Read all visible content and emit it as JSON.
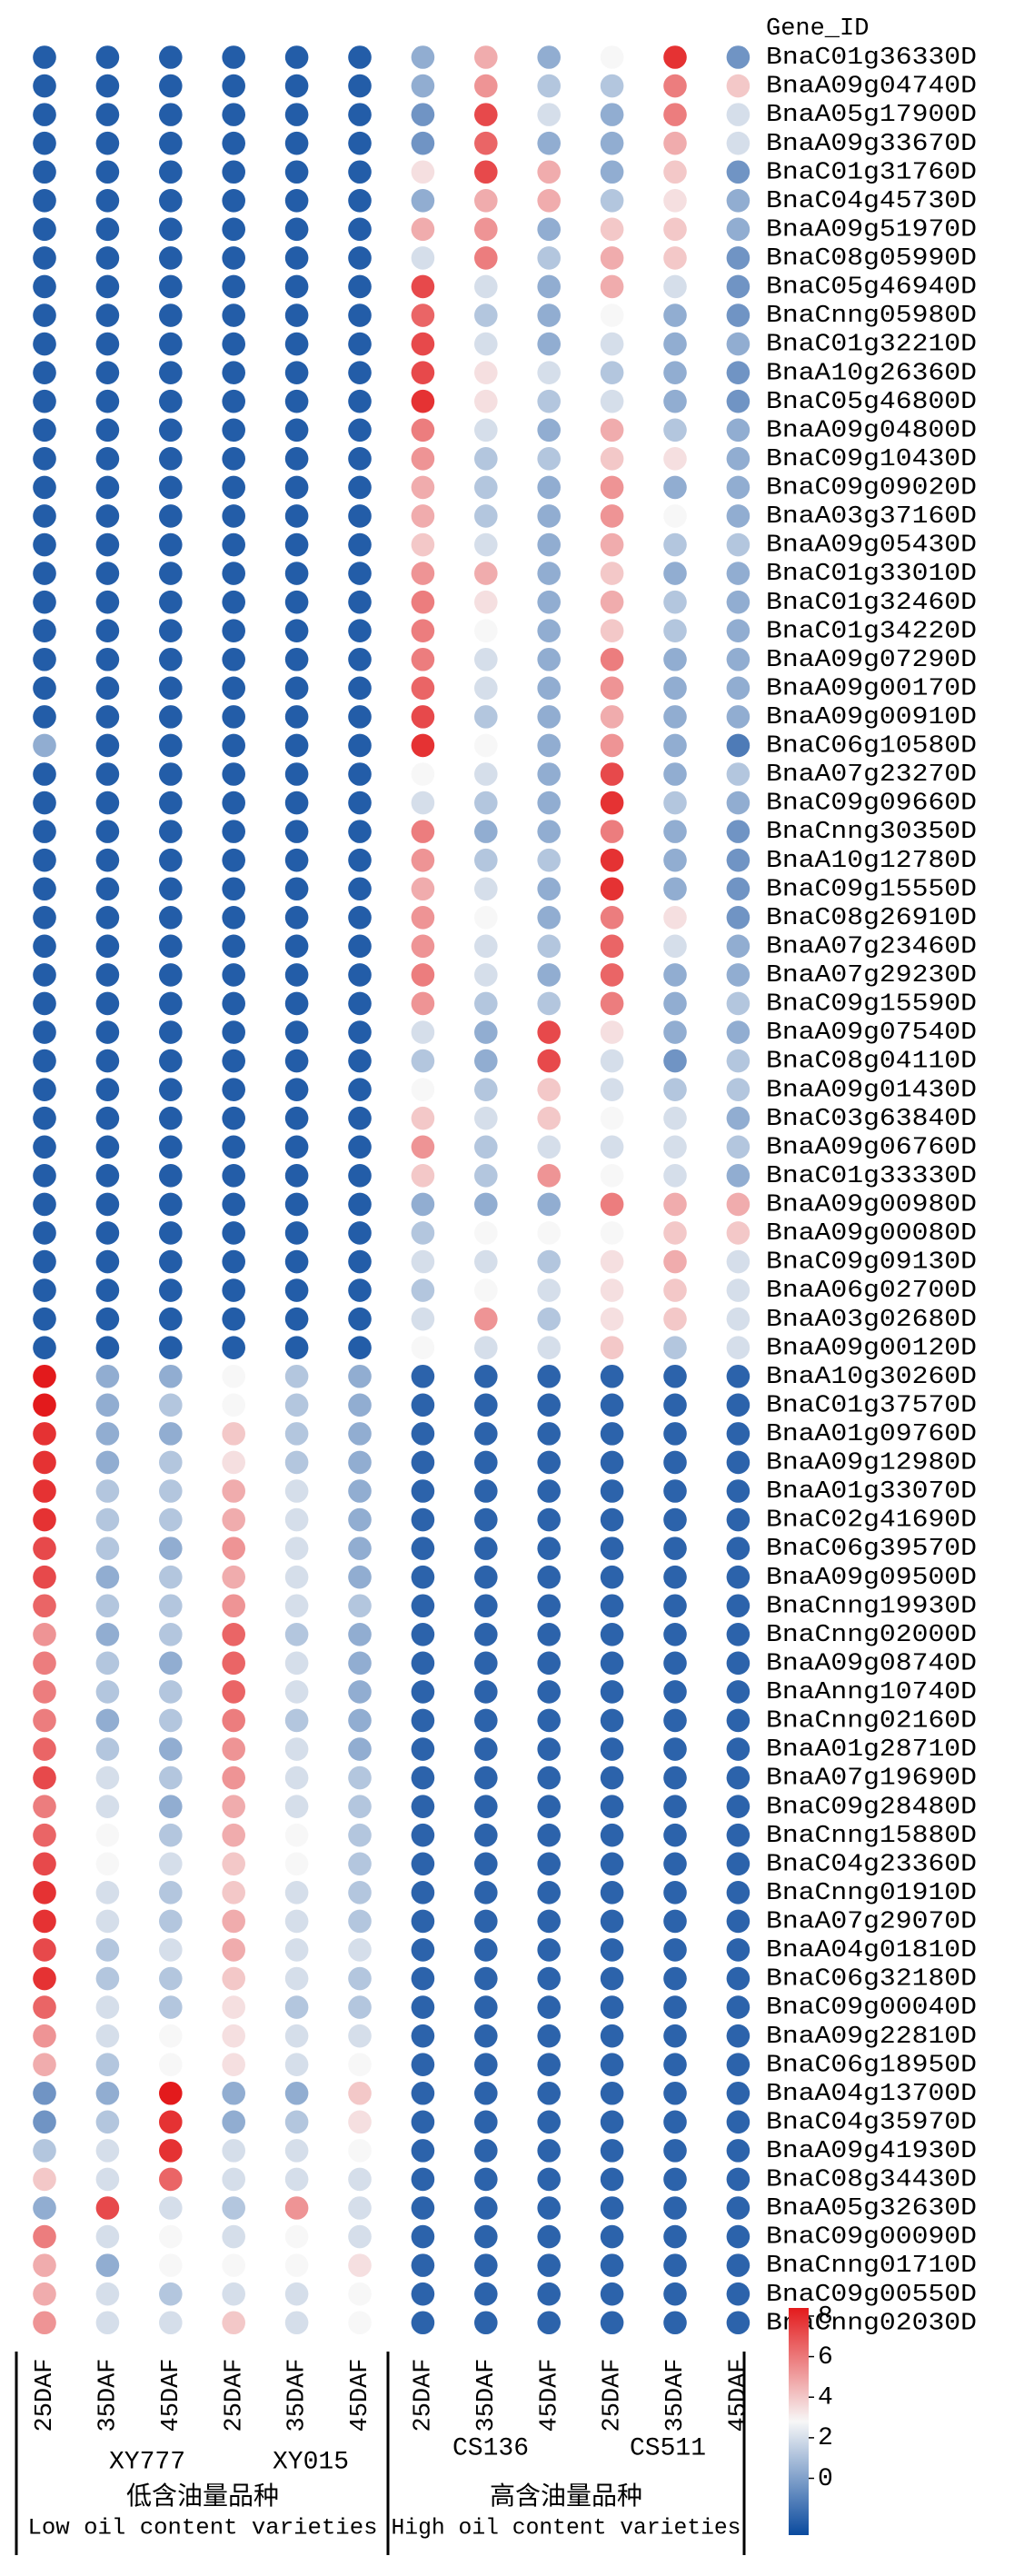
{
  "chart_data": {
    "type": "heatmap",
    "row_header": "Gene_ID",
    "rows": [
      "BnaC01g36330D",
      "BnaA09g04740D",
      "BnaA05g17900D",
      "BnaA09g33670D",
      "BnaC01g31760D",
      "BnaC04g45730D",
      "BnaA09g51970D",
      "BnaC08g05990D",
      "BnaC05g46940D",
      "BnaCnng05980D",
      "BnaC01g32210D",
      "BnaA10g26360D",
      "BnaC05g46800D",
      "BnaA09g04800D",
      "BnaC09g10430D",
      "BnaC09g09020D",
      "BnaA03g37160D",
      "BnaA09g05430D",
      "BnaC01g33010D",
      "BnaC01g32460D",
      "BnaC01g34220D",
      "BnaA09g07290D",
      "BnaA09g00170D",
      "BnaA09g00910D",
      "BnaC06g10580D",
      "BnaA07g23270D",
      "BnaC09g09660D",
      "BnaCnng30350D",
      "BnaA10g12780D",
      "BnaC09g15550D",
      "BnaC08g26910D",
      "BnaA07g23460D",
      "BnaA07g29230D",
      "BnaC09g15590D",
      "BnaA09g07540D",
      "BnaC08g04110D",
      "BnaA09g01430D",
      "BnaC03g63840D",
      "BnaA09g06760D",
      "BnaC01g33330D",
      "BnaA09g00980D",
      "BnaA09g00080D",
      "BnaC09g09130D",
      "BnaA06g02700D",
      "BnaA03g02680D",
      "BnaA09g00120D",
      "BnaA10g30260D",
      "BnaC01g37570D",
      "BnaA01g09760D",
      "BnaA09g12980D",
      "BnaA01g33070D",
      "BnaC02g41690D",
      "BnaC06g39570D",
      "BnaA09g09500D",
      "BnaCnng19930D",
      "BnaCnng02000D",
      "BnaA09g08740D",
      "BnaAnng10740D",
      "BnaCnng02160D",
      "BnaA01g28710D",
      "BnaA07g19690D",
      "BnaC09g28480D",
      "BnaCnng15880D",
      "BnaC04g23360D",
      "BnaCnng01910D",
      "BnaA07g29070D",
      "BnaA04g01810D",
      "BnaC06g32180D",
      "BnaC09g00040D",
      "BnaA09g22810D",
      "BnaC06g18950D",
      "BnaA04g13700D",
      "BnaC04g35970D",
      "BnaA09g41930D",
      "BnaC08g34430D",
      "BnaA05g32630D",
      "BnaC09g00090D",
      "BnaCnng01710D",
      "BnaC09g00550D",
      "BnaCnng02030D"
    ],
    "columns": [
      "25DAF",
      "35DAF",
      "45DAF",
      "25DAF",
      "35DAF",
      "45DAF",
      "25DAF",
      "35DAF",
      "45DAF",
      "25DAF",
      "35DAF",
      "45DAF"
    ],
    "group_labels": [
      "XY777",
      "XY015",
      "CS136",
      "CS511"
    ],
    "sections": [
      {
        "zh": "低含油量品种",
        "en": "Low oil content varieties"
      },
      {
        "zh": "高含油量品种",
        "en": "High oil content varieties"
      }
    ],
    "values": [
      [
        -2.2,
        -2.2,
        -2.2,
        -2.2,
        -2.2,
        -2.2,
        0.4,
        4.7,
        0.4,
        2.8,
        7.8,
        -0.4
      ],
      [
        -2.2,
        -2.2,
        -2.2,
        -2.2,
        -2.2,
        -2.2,
        0.4,
        5.3,
        1.2,
        1.2,
        5.9,
        4.0
      ],
      [
        -2.2,
        -2.2,
        -2.2,
        -2.2,
        -2.2,
        -2.2,
        -0.4,
        7.2,
        2.0,
        0.4,
        5.9,
        2.0
      ],
      [
        -2.2,
        -2.2,
        -2.2,
        -2.2,
        -2.2,
        -2.2,
        -0.4,
        6.5,
        0.4,
        0.4,
        4.7,
        2.0
      ],
      [
        -2.2,
        -2.2,
        -2.2,
        -2.2,
        -2.2,
        -2.2,
        3.4,
        7.2,
        4.7,
        0.4,
        4.0,
        -0.4
      ],
      [
        -2.2,
        -2.2,
        -2.2,
        -2.2,
        -2.2,
        -2.2,
        0.4,
        4.7,
        4.7,
        1.2,
        3.4,
        0.4
      ],
      [
        -2.2,
        -2.2,
        -2.2,
        -2.2,
        -2.2,
        -2.2,
        4.7,
        5.3,
        0.4,
        4.0,
        4.0,
        0.4
      ],
      [
        -2.2,
        -2.2,
        -2.2,
        -2.2,
        -2.2,
        -2.2,
        2.0,
        5.9,
        1.2,
        4.7,
        4.0,
        -0.4
      ],
      [
        -2.2,
        -2.2,
        -2.2,
        -2.2,
        -2.2,
        -2.2,
        7.2,
        2.0,
        0.4,
        4.7,
        2.0,
        -0.4
      ],
      [
        -2.2,
        -2.2,
        -2.2,
        -2.2,
        -2.2,
        -2.2,
        6.5,
        1.2,
        0.4,
        2.8,
        0.4,
        -0.4
      ],
      [
        -2.2,
        -2.2,
        -2.2,
        -2.2,
        -2.2,
        -2.2,
        7.2,
        2.0,
        0.4,
        2.0,
        0.4,
        0.4
      ],
      [
        -2.2,
        -2.2,
        -2.2,
        -2.2,
        -2.2,
        -2.2,
        7.2,
        3.4,
        2.0,
        1.2,
        0.4,
        -0.4
      ],
      [
        -2.2,
        -2.2,
        -2.2,
        -2.2,
        -2.2,
        -2.2,
        7.8,
        3.4,
        1.2,
        2.0,
        0.4,
        -0.4
      ],
      [
        -2.2,
        -2.2,
        -2.2,
        -2.2,
        -2.2,
        -2.2,
        5.9,
        2.0,
        0.4,
        4.7,
        1.2,
        0.4
      ],
      [
        -2.2,
        -2.2,
        -2.2,
        -2.2,
        -2.2,
        -2.2,
        5.3,
        1.2,
        1.2,
        4.0,
        3.4,
        0.4
      ],
      [
        -2.2,
        -2.2,
        -2.2,
        -2.2,
        -2.2,
        -2.2,
        4.7,
        1.2,
        0.4,
        5.3,
        0.4,
        0.4
      ],
      [
        -2.2,
        -2.2,
        -2.2,
        -2.2,
        -2.2,
        -2.2,
        4.7,
        1.2,
        0.4,
        5.3,
        2.8,
        0.4
      ],
      [
        -2.2,
        -2.2,
        -2.2,
        -2.2,
        -2.2,
        -2.2,
        4.0,
        2.0,
        0.4,
        4.7,
        1.2,
        1.2
      ],
      [
        -2.2,
        -2.2,
        -2.2,
        -2.2,
        -2.2,
        -2.2,
        5.3,
        4.7,
        0.4,
        4.0,
        0.4,
        0.4
      ],
      [
        -2.2,
        -2.2,
        -2.2,
        -2.2,
        -2.2,
        -2.2,
        5.9,
        3.4,
        0.4,
        4.7,
        1.2,
        0.4
      ],
      [
        -2.2,
        -2.2,
        -2.2,
        -2.2,
        -2.2,
        -2.2,
        5.9,
        2.8,
        0.4,
        4.0,
        1.2,
        0.4
      ],
      [
        -2.2,
        -2.2,
        -2.2,
        -2.2,
        -2.2,
        -2.2,
        5.9,
        2.0,
        0.4,
        5.9,
        0.4,
        0.4
      ],
      [
        -2.2,
        -2.2,
        -2.2,
        -2.2,
        -2.2,
        -2.2,
        6.5,
        2.0,
        0.4,
        5.3,
        0.4,
        0.4
      ],
      [
        -2.2,
        -2.2,
        -2.2,
        -2.2,
        -2.2,
        -2.2,
        7.2,
        1.2,
        0.4,
        4.7,
        0.4,
        0.4
      ],
      [
        0.4,
        -2.2,
        -2.2,
        -2.2,
        -2.2,
        -2.2,
        7.8,
        2.8,
        0.4,
        5.3,
        0.4,
        -1.2
      ],
      [
        -2.2,
        -2.2,
        -2.2,
        -2.2,
        -2.2,
        -2.2,
        2.8,
        2.0,
        0.4,
        7.2,
        0.4,
        1.2
      ],
      [
        -2.2,
        -2.2,
        -2.2,
        -2.2,
        -2.2,
        -2.2,
        2.0,
        1.2,
        0.4,
        7.8,
        1.2,
        0.4
      ],
      [
        -2.2,
        -2.2,
        -2.2,
        -2.2,
        -2.2,
        -2.2,
        5.9,
        0.4,
        0.4,
        5.9,
        0.4,
        -0.4
      ],
      [
        -2.2,
        -2.2,
        -2.2,
        -2.2,
        -2.2,
        -2.2,
        5.3,
        1.2,
        1.2,
        7.8,
        0.4,
        -0.4
      ],
      [
        -2.2,
        -2.2,
        -2.2,
        -2.2,
        -2.2,
        -2.2,
        4.7,
        2.0,
        0.4,
        7.8,
        0.4,
        -0.4
      ],
      [
        -2.2,
        -2.2,
        -2.2,
        -2.2,
        -2.2,
        -2.2,
        5.3,
        2.8,
        0.4,
        5.9,
        3.4,
        -0.4
      ],
      [
        -2.2,
        -2.2,
        -2.2,
        -2.2,
        -2.2,
        -2.2,
        5.3,
        2.0,
        1.2,
        6.5,
        2.0,
        0.4
      ],
      [
        -2.2,
        -2.2,
        -2.2,
        -2.2,
        -2.2,
        -2.2,
        5.9,
        2.0,
        0.4,
        6.5,
        0.4,
        0.4
      ],
      [
        -2.2,
        -2.2,
        -2.2,
        -2.2,
        -2.2,
        -2.2,
        5.3,
        1.2,
        1.2,
        5.9,
        0.4,
        1.2
      ],
      [
        -2.2,
        -2.2,
        -2.2,
        -2.2,
        -2.2,
        -2.2,
        2.0,
        0.4,
        7.2,
        3.4,
        0.4,
        0.4
      ],
      [
        -2.2,
        -2.2,
        -2.2,
        -2.2,
        -2.2,
        -2.2,
        1.2,
        0.4,
        7.2,
        2.0,
        -0.4,
        1.2
      ],
      [
        -2.2,
        -2.2,
        -2.2,
        -2.2,
        -2.2,
        -2.2,
        2.8,
        1.2,
        4.0,
        2.0,
        1.2,
        1.2
      ],
      [
        -2.2,
        -2.2,
        -2.2,
        -2.2,
        -2.2,
        -2.2,
        4.0,
        2.0,
        4.0,
        2.8,
        2.0,
        0.4
      ],
      [
        -2.2,
        -2.2,
        -2.2,
        -2.2,
        -2.2,
        -2.2,
        5.3,
        1.2,
        2.0,
        2.0,
        2.0,
        1.2
      ],
      [
        -2.2,
        -2.2,
        -2.2,
        -2.2,
        -2.2,
        -2.2,
        4.0,
        1.2,
        5.3,
        2.8,
        2.0,
        0.4
      ],
      [
        -2.2,
        -2.2,
        -2.2,
        -2.2,
        -2.2,
        -2.2,
        0.4,
        0.4,
        0.4,
        5.9,
        4.7,
        4.7
      ],
      [
        -2.2,
        -2.2,
        -2.2,
        -2.2,
        -2.2,
        -2.2,
        1.2,
        2.8,
        2.8,
        2.8,
        4.0,
        4.0
      ],
      [
        -2.2,
        -2.2,
        -2.2,
        -2.2,
        -2.2,
        -2.2,
        2.0,
        2.0,
        1.2,
        3.4,
        4.7,
        2.0
      ],
      [
        -2.2,
        -2.2,
        -2.2,
        -2.2,
        -2.2,
        -2.2,
        1.2,
        2.8,
        2.0,
        3.4,
        4.0,
        2.0
      ],
      [
        -2.2,
        -2.2,
        -2.2,
        -2.2,
        -2.2,
        -2.2,
        2.0,
        5.3,
        1.2,
        3.4,
        4.0,
        2.0
      ],
      [
        -2.2,
        -2.2,
        -2.2,
        -2.2,
        -2.2,
        -2.2,
        2.8,
        2.0,
        2.0,
        4.0,
        1.2,
        2.0
      ],
      [
        8.4,
        0.4,
        0.4,
        2.8,
        1.2,
        0.4,
        -2.0,
        -2.0,
        -2.0,
        -2.0,
        -2.0,
        -2.0
      ],
      [
        8.4,
        0.4,
        1.2,
        2.8,
        1.2,
        0.4,
        -2.0,
        -2.0,
        -2.0,
        -2.0,
        -2.0,
        -2.0
      ],
      [
        7.8,
        0.4,
        0.4,
        4.0,
        1.2,
        0.4,
        -2.0,
        -2.0,
        -2.0,
        -2.0,
        -2.0,
        -2.0
      ],
      [
        7.8,
        0.4,
        1.2,
        3.4,
        1.2,
        0.4,
        -2.0,
        -2.0,
        -2.0,
        -2.0,
        -2.0,
        -2.0
      ],
      [
        7.8,
        1.2,
        1.2,
        4.7,
        2.0,
        0.4,
        -2.0,
        -2.0,
        -2.0,
        -2.0,
        -2.0,
        -2.0
      ],
      [
        7.8,
        1.2,
        1.2,
        4.7,
        2.0,
        0.4,
        -2.0,
        -2.0,
        -2.0,
        -2.0,
        -2.0,
        -2.0
      ],
      [
        7.2,
        1.2,
        0.4,
        5.3,
        2.0,
        0.4,
        -2.0,
        -2.0,
        -2.0,
        -2.0,
        -2.0,
        -2.0
      ],
      [
        7.2,
        0.4,
        1.2,
        4.7,
        2.0,
        0.4,
        -2.0,
        -2.0,
        -2.0,
        -2.0,
        -2.0,
        -2.0
      ],
      [
        6.5,
        1.2,
        1.2,
        5.3,
        2.0,
        1.2,
        -2.0,
        -2.0,
        -2.0,
        -2.0,
        -2.0,
        -2.0
      ],
      [
        5.3,
        0.4,
        1.2,
        6.5,
        1.2,
        0.4,
        -2.0,
        -2.0,
        -2.0,
        -2.0,
        -2.0,
        -2.0
      ],
      [
        5.9,
        1.2,
        0.4,
        6.5,
        2.0,
        0.4,
        -2.0,
        -2.0,
        -2.0,
        -2.0,
        -2.0,
        -2.0
      ],
      [
        5.9,
        1.2,
        1.2,
        6.5,
        2.0,
        0.4,
        -2.0,
        -2.0,
        -2.0,
        -2.0,
        -2.0,
        -2.0
      ],
      [
        5.9,
        0.4,
        1.2,
        5.9,
        1.2,
        0.4,
        -2.0,
        -2.0,
        -2.0,
        -2.0,
        -2.0,
        -2.0
      ],
      [
        6.5,
        1.2,
        0.4,
        5.3,
        2.0,
        0.4,
        -2.0,
        -2.0,
        -2.0,
        -2.0,
        -2.0,
        -2.0
      ],
      [
        7.2,
        2.0,
        1.2,
        5.3,
        2.0,
        1.2,
        -2.0,
        -2.0,
        -2.0,
        -2.0,
        -2.0,
        -2.0
      ],
      [
        5.9,
        2.0,
        0.4,
        4.7,
        2.0,
        1.2,
        -2.0,
        -2.0,
        -2.0,
        -2.0,
        -2.0,
        -2.0
      ],
      [
        6.5,
        2.8,
        1.2,
        4.7,
        2.8,
        1.2,
        -2.0,
        -2.0,
        -2.0,
        -2.0,
        -2.0,
        -2.0
      ],
      [
        7.2,
        2.8,
        2.0,
        4.0,
        2.8,
        1.2,
        -2.0,
        -2.0,
        -2.0,
        -2.0,
        -2.0,
        -2.0
      ],
      [
        7.8,
        2.0,
        1.2,
        4.0,
        2.0,
        1.2,
        -2.0,
        -2.0,
        -2.0,
        -2.0,
        -2.0,
        -2.0
      ],
      [
        7.8,
        2.0,
        1.2,
        4.7,
        2.0,
        1.2,
        -2.0,
        -2.0,
        -2.0,
        -2.0,
        -2.0,
        -2.0
      ],
      [
        7.2,
        1.2,
        2.0,
        4.7,
        2.0,
        2.0,
        -2.0,
        -2.0,
        -2.0,
        -2.0,
        -2.0,
        -2.0
      ],
      [
        7.8,
        1.2,
        1.2,
        4.0,
        2.0,
        1.2,
        -2.0,
        -2.0,
        -2.0,
        -2.0,
        -2.0,
        -2.0
      ],
      [
        6.5,
        2.0,
        1.2,
        3.4,
        1.2,
        1.2,
        -2.0,
        -2.0,
        -2.0,
        -2.0,
        -2.0,
        -2.0
      ],
      [
        5.3,
        2.0,
        2.8,
        3.4,
        2.0,
        2.0,
        -2.0,
        -2.0,
        -2.0,
        -2.0,
        -2.0,
        -2.0
      ],
      [
        4.7,
        1.2,
        2.8,
        3.4,
        2.0,
        2.8,
        -2.0,
        -2.0,
        -2.0,
        -2.0,
        -2.0,
        -2.0
      ],
      [
        -0.4,
        0.4,
        8.4,
        0.4,
        0.4,
        4.0,
        -2.0,
        -2.0,
        -2.0,
        -2.0,
        -2.0,
        -2.0
      ],
      [
        -0.4,
        1.2,
        7.8,
        0.4,
        1.2,
        3.4,
        -2.0,
        -2.0,
        -2.0,
        -2.0,
        -2.0,
        -2.0
      ],
      [
        1.2,
        2.0,
        7.8,
        2.0,
        2.0,
        2.8,
        -2.0,
        -2.0,
        -2.0,
        -2.0,
        -2.0,
        -2.0
      ],
      [
        4.0,
        2.0,
        6.5,
        2.0,
        2.0,
        2.0,
        -2.0,
        -2.0,
        -2.0,
        -2.0,
        -2.0,
        -2.0
      ],
      [
        0.4,
        7.2,
        2.0,
        1.2,
        5.3,
        2.0,
        -2.0,
        -2.0,
        -2.0,
        -2.0,
        -2.0,
        -2.0
      ],
      [
        5.9,
        2.0,
        2.8,
        2.0,
        2.8,
        2.0,
        -2.0,
        -2.0,
        -2.0,
        -2.0,
        -2.0,
        -2.0
      ],
      [
        4.7,
        0.4,
        2.8,
        2.8,
        2.8,
        3.4,
        -2.0,
        -2.0,
        -2.0,
        -2.0,
        -2.0,
        -2.0
      ],
      [
        4.7,
        2.0,
        1.2,
        2.0,
        2.0,
        2.8,
        -2.0,
        -2.0,
        -2.0,
        -2.0,
        -2.0,
        -2.0
      ],
      [
        5.3,
        2.0,
        2.0,
        4.0,
        2.0,
        2.8,
        -2.0,
        -2.0,
        -2.0,
        -2.0,
        -2.0,
        -2.0
      ]
    ],
    "clim": [
      -2.8,
      8.4
    ],
    "colorbar_ticks": [
      0,
      2,
      4,
      6,
      8
    ],
    "colormap": [
      "#0a4a9e",
      "#f7f7f7",
      "#e31a1c"
    ]
  }
}
